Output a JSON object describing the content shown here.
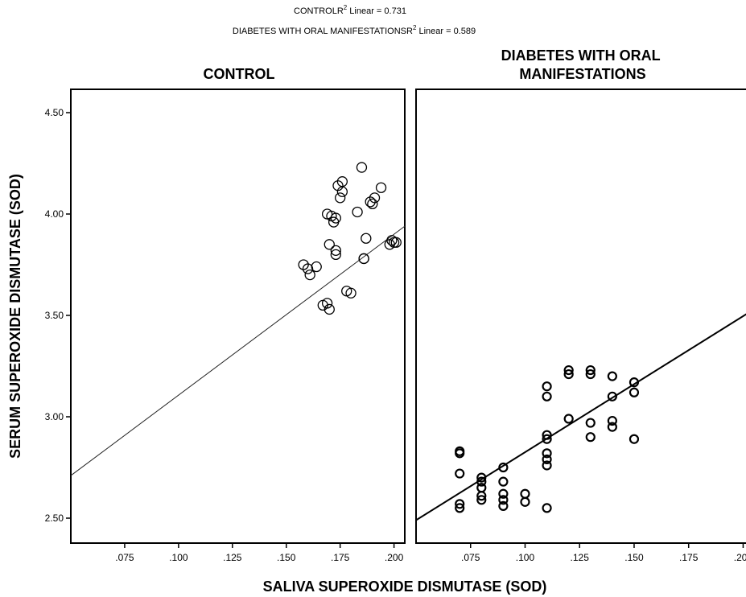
{
  "header": {
    "line1_prefix": "CONTROLR",
    "line1_sup": "2",
    "line1_suffix": " Linear = 0.731",
    "line2_prefix": "DIABETES WITH ORAL MANIFESTATIONSR",
    "line2_sup": "2",
    "line2_suffix": " Linear = 0.589"
  },
  "chart_data": {
    "type": "scatter",
    "xlabel": "SALIVA SUPEROXIDE DISMUTASE (SOD)",
    "ylabel": "SERUM SUPEROXIDE DISMUTASE (SOD)",
    "xlim": [
      0.05,
      0.205
    ],
    "ylim": [
      2.44,
      4.5
    ],
    "x_ticks": [
      0.075,
      0.1,
      0.125,
      0.15,
      0.175,
      0.2
    ],
    "x_tick_labels": [
      ".075",
      ".100",
      ".125",
      ".150",
      ".175",
      ".200"
    ],
    "y_ticks": [
      2.5,
      3.0,
      3.5,
      4.0,
      4.5
    ],
    "y_tick_labels": [
      "2.50",
      "3.00",
      "3.50",
      "4.00",
      "4.50"
    ],
    "grid": false,
    "panels": [
      {
        "title": "CONTROL",
        "r2_linear": 0.731,
        "fit_line": {
          "x": [
            0.05,
            0.205
          ],
          "y": [
            2.71,
            3.94
          ]
        },
        "points": [
          [
            0.158,
            3.75
          ],
          [
            0.16,
            3.73
          ],
          [
            0.161,
            3.7
          ],
          [
            0.164,
            3.74
          ],
          [
            0.167,
            3.55
          ],
          [
            0.169,
            3.56
          ],
          [
            0.17,
            3.53
          ],
          [
            0.17,
            3.85
          ],
          [
            0.169,
            4.0
          ],
          [
            0.171,
            3.99
          ],
          [
            0.172,
            3.96
          ],
          [
            0.173,
            3.98
          ],
          [
            0.173,
            3.82
          ],
          [
            0.173,
            3.8
          ],
          [
            0.174,
            4.14
          ],
          [
            0.175,
            4.08
          ],
          [
            0.176,
            4.16
          ],
          [
            0.176,
            4.11
          ],
          [
            0.178,
            3.62
          ],
          [
            0.18,
            3.61
          ],
          [
            0.183,
            4.01
          ],
          [
            0.185,
            4.23
          ],
          [
            0.186,
            3.78
          ],
          [
            0.186,
            3.78
          ],
          [
            0.187,
            3.88
          ],
          [
            0.189,
            4.06
          ],
          [
            0.19,
            4.05
          ],
          [
            0.191,
            4.08
          ],
          [
            0.194,
            4.13
          ],
          [
            0.198,
            3.85
          ],
          [
            0.199,
            3.87
          ],
          [
            0.2,
            3.86
          ],
          [
            0.201,
            3.86
          ]
        ]
      },
      {
        "title": "DIABETES WITH ORAL MANIFESTATIONS",
        "r2_linear": 0.589,
        "fit_line": {
          "x": [
            0.05,
            0.205
          ],
          "y": [
            2.49,
            3.53
          ]
        },
        "points": [
          [
            0.07,
            2.83
          ],
          [
            0.07,
            2.82
          ],
          [
            0.07,
            2.72
          ],
          [
            0.07,
            2.57
          ],
          [
            0.07,
            2.55
          ],
          [
            0.08,
            2.7
          ],
          [
            0.08,
            2.68
          ],
          [
            0.08,
            2.65
          ],
          [
            0.08,
            2.61
          ],
          [
            0.08,
            2.59
          ],
          [
            0.09,
            2.75
          ],
          [
            0.09,
            2.68
          ],
          [
            0.09,
            2.62
          ],
          [
            0.09,
            2.59
          ],
          [
            0.09,
            2.56
          ],
          [
            0.1,
            2.62
          ],
          [
            0.1,
            2.58
          ],
          [
            0.11,
            3.15
          ],
          [
            0.11,
            3.1
          ],
          [
            0.11,
            2.91
          ],
          [
            0.11,
            2.89
          ],
          [
            0.11,
            2.82
          ],
          [
            0.11,
            2.79
          ],
          [
            0.11,
            2.76
          ],
          [
            0.11,
            2.55
          ],
          [
            0.12,
            3.23
          ],
          [
            0.12,
            3.21
          ],
          [
            0.12,
            2.99
          ],
          [
            0.13,
            3.23
          ],
          [
            0.13,
            3.21
          ],
          [
            0.13,
            2.97
          ],
          [
            0.13,
            2.9
          ],
          [
            0.14,
            3.2
          ],
          [
            0.14,
            3.1
          ],
          [
            0.14,
            2.98
          ],
          [
            0.14,
            2.95
          ],
          [
            0.15,
            3.17
          ],
          [
            0.15,
            3.12
          ],
          [
            0.15,
            2.89
          ]
        ]
      }
    ]
  }
}
